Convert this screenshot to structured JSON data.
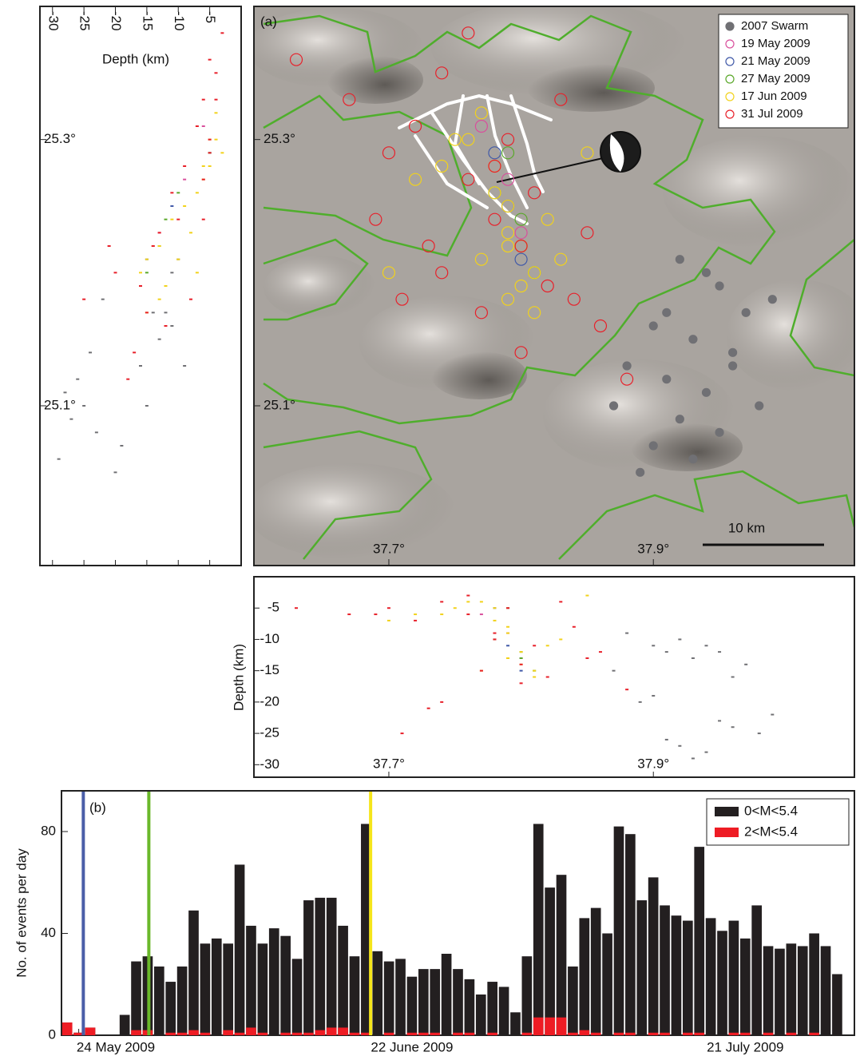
{
  "chart_data": [
    {
      "type": "map",
      "label": "(a)",
      "scale_bar": "10 km",
      "legend": "upper right",
      "xlim": [
        37.598,
        38.052
      ],
      "ylim": [
        24.98,
        25.4
      ],
      "xticks": [
        {
          "value": 37.7,
          "label": "37.7°"
        },
        {
          "value": 37.9,
          "label": "37.9°"
        }
      ],
      "yticks": [
        {
          "value": 25.1,
          "label": "25.1°"
        },
        {
          "value": 25.3,
          "label": "25.3°"
        }
      ],
      "series": [
        {
          "name": "2007 Swarm",
          "color": "#707074",
          "filled": true,
          "lon": [
            37.92,
            37.95,
            37.97,
            37.9,
            37.93,
            37.96,
            37.99,
            37.91,
            37.94,
            37.88,
            37.92,
            37.95,
            37.98,
            37.9,
            37.93,
            37.89,
            37.96,
            37.91,
            37.87,
            37.94
          ],
          "lat": [
            25.21,
            25.19,
            25.17,
            25.16,
            25.15,
            25.14,
            25.18,
            25.12,
            25.11,
            25.13,
            25.09,
            25.08,
            25.1,
            25.07,
            25.06,
            25.05,
            25.13,
            25.17,
            25.1,
            25.2
          ],
          "depth": [
            -10,
            -12,
            -14,
            -11,
            -13,
            -24,
            -22,
            -26,
            -28,
            -9,
            -27,
            -23,
            -25,
            -19,
            -29,
            -20,
            -16,
            -12,
            -15,
            -11
          ]
        },
        {
          "name": "19 May 2009",
          "color": "#d94f9c",
          "filled": false,
          "lon": [
            37.77,
            37.79,
            37.8
          ],
          "lat": [
            25.31,
            25.27,
            25.23
          ],
          "depth": [
            -6,
            -9,
            -13
          ]
        },
        {
          "name": "21 May 2009",
          "color": "#4059a8",
          "filled": false,
          "lon": [
            37.78,
            37.79,
            37.8
          ],
          "lat": [
            25.29,
            25.25,
            25.21
          ],
          "depth": [
            -5,
            -11,
            -15
          ]
        },
        {
          "name": "27 May 2009",
          "color": "#5aa82a",
          "filled": false,
          "lon": [
            37.79,
            37.8,
            37.78,
            37.81,
            37.8
          ],
          "lat": [
            25.29,
            25.22,
            25.26,
            25.2,
            25.24
          ],
          "depth": [
            -5,
            -13,
            -10,
            -15,
            -12
          ]
        },
        {
          "name": "17 Jun 2009",
          "color": "#f2d21b",
          "filled": false,
          "lon": [
            37.76,
            37.78,
            37.79,
            37.8,
            37.77,
            37.81,
            37.79,
            37.75,
            37.82,
            37.78,
            37.8,
            37.74,
            37.83,
            37.72,
            37.79,
            37.77,
            37.81,
            37.85,
            37.7,
            37.79
          ],
          "lat": [
            25.3,
            25.28,
            25.25,
            25.22,
            25.21,
            25.2,
            25.18,
            25.3,
            25.24,
            25.26,
            25.19,
            25.28,
            25.21,
            25.27,
            25.23,
            25.32,
            25.17,
            25.29,
            25.2,
            25.22
          ],
          "depth": [
            -4,
            -5,
            -9,
            -14,
            -15,
            -16,
            -13,
            -5,
            -11,
            -7,
            -12,
            -6,
            -10,
            -6,
            -8,
            -4,
            -15,
            -3,
            -7,
            -13
          ]
        },
        {
          "name": "31 Jul 2009",
          "color": "#e8202a",
          "filled": false,
          "lon": [
            37.63,
            37.67,
            37.7,
            37.72,
            37.74,
            37.76,
            37.78,
            37.8,
            37.82,
            37.84,
            37.86,
            37.74,
            37.77,
            37.79,
            37.81,
            37.83,
            37.69,
            37.73,
            37.76,
            37.8,
            37.78,
            37.85,
            37.71,
            37.88
          ],
          "lat": [
            25.36,
            25.33,
            25.29,
            25.31,
            25.35,
            25.27,
            25.24,
            25.22,
            25.19,
            25.18,
            25.16,
            25.2,
            25.17,
            25.3,
            25.26,
            25.33,
            25.24,
            25.22,
            25.38,
            25.14,
            25.28,
            25.23,
            25.18,
            25.12
          ],
          "depth": [
            -5,
            -6,
            -5,
            -7,
            -4,
            -6,
            -10,
            -14,
            -16,
            -8,
            -12,
            -20,
            -15,
            -5,
            -11,
            -4,
            -6,
            -21,
            -3,
            -17,
            -9,
            -13,
            -25,
            -18
          ]
        }
      ]
    },
    {
      "type": "depth-lat",
      "xlabel": "Depth (km)",
      "xlim": [
        -32,
        0
      ],
      "xticks": [
        -30,
        -25,
        -20,
        -15,
        -10,
        -5
      ],
      "ylim": [
        24.98,
        25.4
      ],
      "yticks": [
        {
          "value": 25.1,
          "label": "25.1°"
        },
        {
          "value": 25.3,
          "label": "25.3°"
        }
      ]
    },
    {
      "type": "lon-depth",
      "ylabel": "Depth (km)",
      "ylim": [
        -32,
        0
      ],
      "yticks": [
        -30,
        -25,
        -20,
        -15,
        -10,
        -5
      ],
      "xlim": [
        37.598,
        38.052
      ],
      "xticks": [
        {
          "value": 37.7,
          "label": "37.7°"
        },
        {
          "value": 37.9,
          "label": "37.9°"
        }
      ]
    },
    {
      "type": "bar",
      "label": "(b)",
      "ylabel": "No. of events per day",
      "legend": "upper right",
      "xlim": [
        142.5,
        211.5
      ],
      "ylim": [
        0,
        96
      ],
      "yticks": [
        0,
        40,
        80
      ],
      "xticks": [
        {
          "value": 144,
          "label": "24 May 2009"
        },
        {
          "value": 173,
          "label": "22 June 2009"
        },
        {
          "value": 202,
          "label": "21 July 2009"
        }
      ],
      "x": [
        143,
        144,
        145,
        146,
        147,
        148,
        149,
        150,
        151,
        152,
        153,
        154,
        155,
        156,
        157,
        158,
        159,
        160,
        161,
        162,
        163,
        164,
        165,
        166,
        167,
        168,
        169,
        170,
        171,
        172,
        173,
        174,
        175,
        176,
        177,
        178,
        179,
        180,
        181,
        182,
        183,
        184,
        185,
        186,
        187,
        188,
        189,
        190,
        191,
        192,
        193,
        194,
        195,
        196,
        197,
        198,
        199,
        200,
        201,
        202,
        203,
        204,
        205,
        206,
        207,
        208,
        209,
        210
      ],
      "series": [
        {
          "name": "0<M<5.4",
          "color": "#231f20",
          "values": [
            5,
            1,
            3,
            0,
            0,
            8,
            29,
            31,
            27,
            21,
            27,
            49,
            36,
            38,
            36,
            67,
            43,
            36,
            42,
            39,
            30,
            53,
            54,
            54,
            43,
            31,
            83,
            33,
            29,
            30,
            23,
            26,
            26,
            32,
            26,
            22,
            16,
            21,
            19,
            9,
            31,
            83,
            58,
            63,
            27,
            46,
            50,
            40,
            82,
            79,
            53,
            62,
            51,
            47,
            45,
            74,
            46,
            41,
            45,
            38,
            51,
            35,
            34,
            36,
            35,
            40,
            35,
            24
          ]
        },
        {
          "name": "2<M<5.4",
          "color": "#ee1c24",
          "values": [
            5,
            1,
            3,
            0,
            0,
            0,
            2,
            2,
            0,
            1,
            1,
            2,
            1,
            0,
            2,
            1,
            3,
            1,
            0,
            1,
            1,
            1,
            2,
            3,
            3,
            1,
            1,
            0,
            1,
            0,
            1,
            1,
            1,
            0,
            1,
            1,
            0,
            1,
            0,
            0,
            1,
            7,
            7,
            7,
            1,
            2,
            1,
            0,
            1,
            1,
            0,
            1,
            1,
            0,
            1,
            1,
            0,
            0,
            1,
            1,
            0,
            1,
            0,
            1,
            0,
            1,
            0,
            0
          ]
        }
      ],
      "markers": [
        {
          "x": 144.4,
          "color": "#4a5ea8"
        },
        {
          "x": 150.1,
          "color": "#6ab82a"
        },
        {
          "x": 169.4,
          "color": "#f5e51a"
        }
      ]
    }
  ]
}
